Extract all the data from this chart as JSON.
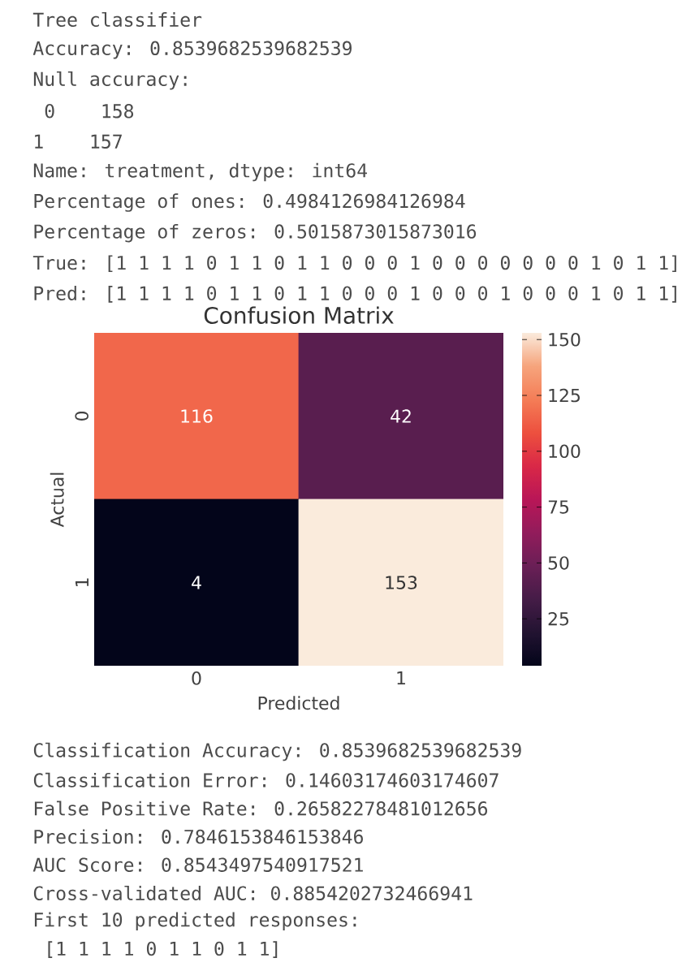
{
  "chart_data": {
    "type": "heatmap",
    "title": "Confusion Matrix",
    "xlabel": "Predicted",
    "ylabel": "Actual",
    "categories": [
      "0",
      "1"
    ],
    "y_categories": [
      "0",
      "1"
    ],
    "cells": [
      [
        116,
        42
      ],
      [
        4,
        153
      ]
    ],
    "data_labels": true,
    "clim": [
      4,
      153
    ],
    "cticks": [
      25,
      50,
      75,
      100,
      125,
      150
    ],
    "annotations": [
      "Tree classifier",
      "Accuracy: 0.8539682539682539",
      "Null accuracy:",
      " 0    158",
      "1    157",
      "Name: treatment, dtype: int64",
      "Percentage of ones: 0.4984126984126984",
      "Percentage of zeros: 0.5015873015873016",
      "True: [1 1 1 1 0 1 1 0 1 1 0 0 0 1 0 0 0 0 0 0 0 1 0 1 1]",
      "Pred: [1 1 1 1 0 1 1 0 1 1 0 0 0 1 0 0 0 1 0 0 0 1 0 1 1]",
      "Classification Accuracy: 0.8539682539682539",
      "Classification Error: 0.14603174603174607",
      "False Positive Rate: 0.26582278481012656",
      "Precision: 0.7846153846153846",
      "AUC Score: 0.8543497540917521",
      "Cross-validated AUC: 0.8854202732466941",
      "First 10 predicted responses:",
      " [1 1 1 1 0 1 1 0 1 1]"
    ]
  }
}
